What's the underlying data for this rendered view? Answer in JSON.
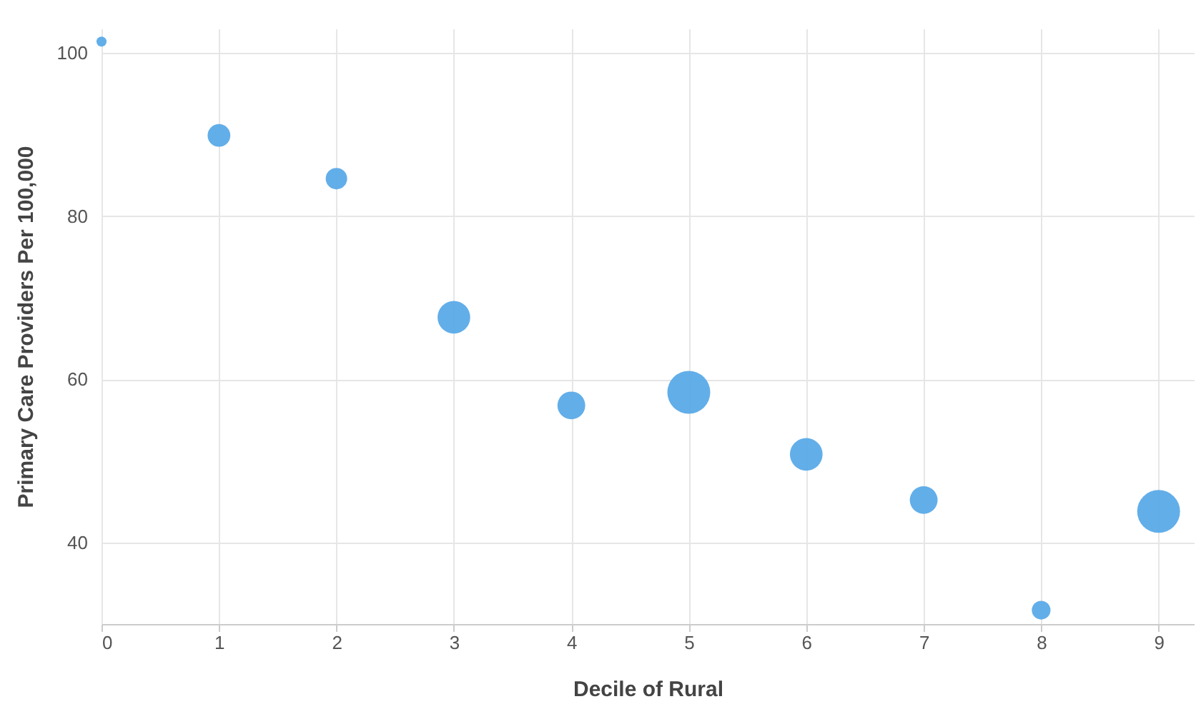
{
  "chart_data": {
    "type": "bubble",
    "xlabel": "Decile of Rural",
    "ylabel": "Primary Care Providers Per 100,000",
    "x": [
      0,
      1,
      2,
      3,
      4,
      5,
      6,
      7,
      8,
      9
    ],
    "values": [
      101.4,
      89.9,
      84.6,
      67.6,
      56.8,
      58.4,
      50.8,
      45.2,
      31.7,
      43.8
    ],
    "sizes": [
      0.055,
      0.28,
      0.25,
      0.58,
      0.42,
      1,
      0.58,
      0.42,
      0.19,
      1
    ],
    "color": "#5aaae8",
    "xlim": [
      0,
      9.3
    ],
    "xticks": [
      0,
      1,
      2,
      3,
      4,
      5,
      6,
      7,
      8,
      9
    ],
    "ylim": [
      30,
      103
    ],
    "yticks": [
      40,
      60,
      80,
      100
    ],
    "grid": true
  }
}
